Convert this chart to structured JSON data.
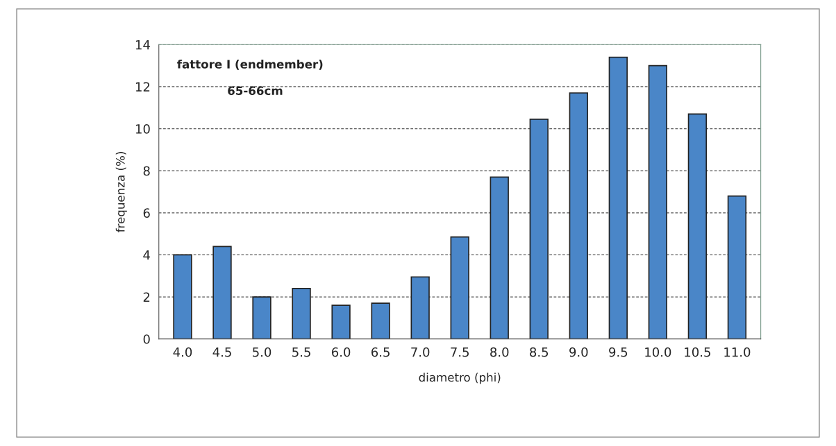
{
  "chart_data": {
    "type": "bar",
    "xlabel": "diametro (phi)",
    "ylabel": "frequenza (%)",
    "annotations": [
      "fattore I (endmember)",
      "65-66cm"
    ],
    "categories": [
      "4.0",
      "4.5",
      "5.0",
      "5.5",
      "6.0",
      "6.5",
      "7.0",
      "7.5",
      "8.0",
      "8.5",
      "9.0",
      "9.5",
      "10.0",
      "10.5",
      "11.0"
    ],
    "values": [
      4.0,
      4.4,
      2.0,
      2.4,
      1.6,
      1.7,
      2.95,
      4.85,
      7.7,
      10.45,
      11.7,
      13.4,
      13.0,
      10.7,
      6.8
    ],
    "color": "#4a86c8",
    "ylim": [
      0,
      14
    ],
    "yticks": [
      0,
      2,
      4,
      6,
      8,
      10,
      12,
      14
    ],
    "grid": "y"
  }
}
